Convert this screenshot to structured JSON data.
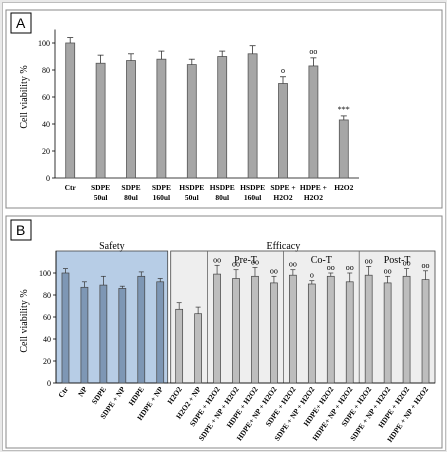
{
  "chart_data": [
    {
      "type": "bar",
      "panel": "A",
      "ylabel": "Cell viability %",
      "ylim": [
        0,
        120
      ],
      "yticks": [
        0,
        20,
        40,
        60,
        80,
        100
      ],
      "categories": [
        [
          "Ctr"
        ],
        [
          "SDPE",
          "50ul"
        ],
        [
          "SDPE",
          "80ul"
        ],
        [
          "SDPE",
          "160ul"
        ],
        [
          "HSDPE",
          "50ul"
        ],
        [
          "HSDPE",
          "80ul"
        ],
        [
          "HSDPE",
          "160ul"
        ],
        [
          "SDPE +",
          "H2O2"
        ],
        [
          "HDPE +",
          "H2O2"
        ],
        [
          "H2O2"
        ]
      ],
      "values": [
        100,
        85,
        87,
        88,
        84,
        90,
        92,
        70,
        83,
        43
      ],
      "errors": [
        4,
        6,
        5,
        6,
        4,
        4,
        6,
        5,
        6,
        3
      ],
      "significance": [
        "",
        "",
        "",
        "",
        "",
        "",
        "",
        "o",
        "oo",
        "***"
      ],
      "bar_color": "#a6a6a6"
    },
    {
      "type": "bar",
      "panel": "B",
      "ylabel": "Cell viability %",
      "ylim": [
        0,
        120
      ],
      "yticks": [
        0,
        20,
        40,
        60,
        80,
        100
      ],
      "group_labels": [
        "Safety",
        "Efficacy",
        "Pre-T",
        "Co-T",
        "Post-T"
      ],
      "categories": [
        "Ctr",
        "NP",
        "SDPE",
        "SDPE + NP",
        "HDPE",
        "HDPE + NP",
        "H2O2",
        "H2O2 + NP",
        "SDPE + H2O2",
        "SDPE + NP + H2O2",
        "HDPE + H2O2",
        "HDPE+ NP + H2O2",
        "SDPE + H2O2",
        "SDPE + NP + H2O2",
        "HDPE+ H2O2",
        "HDPE+ NP + H2O2",
        "SDPE + H2O2",
        "SDPE + NP + H2O2",
        "HDPE + H2O2",
        "HDPE + NP + H2O2"
      ],
      "values": [
        100,
        87,
        89,
        86,
        97,
        92,
        67,
        63,
        99,
        95,
        97,
        91,
        98,
        90,
        97,
        92,
        98,
        91,
        97,
        94
      ],
      "errors": [
        4,
        5,
        8,
        2,
        4,
        3,
        6,
        6,
        8,
        8,
        8,
        6,
        5,
        3,
        3,
        8,
        8,
        6,
        7,
        8
      ],
      "significance": [
        "",
        "",
        "",
        "",
        "",
        "",
        "",
        "",
        "oo",
        "oo",
        "oo",
        "oo",
        "oo",
        "o",
        "oo",
        "oo",
        "oo",
        "oo",
        "oo",
        "oo"
      ],
      "safety_bar_color": "#7e97b5",
      "efficacy_bar_color": "#bdbdbd",
      "safety_bg": "#b7cde6",
      "efficacy_bg": "#eeeeee"
    }
  ]
}
